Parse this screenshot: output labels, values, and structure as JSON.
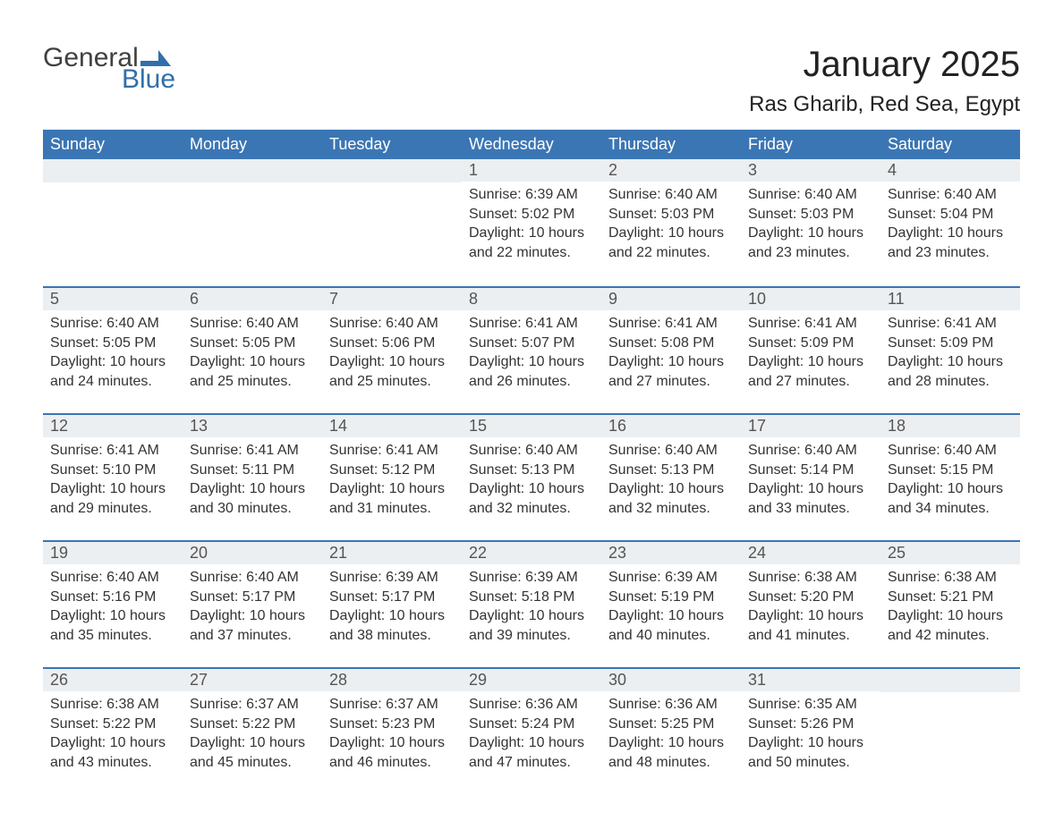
{
  "logo": {
    "general": "General",
    "blue": "Blue"
  },
  "title": "January 2025",
  "location": "Ras Gharib, Red Sea, Egypt",
  "colors": {
    "header_bg": "#3b76b4",
    "header_text": "#ffffff",
    "daynum_bg": "#eceff1",
    "daynum_border": "#3b76b4",
    "body_text": "#333333",
    "title_text": "#222222",
    "logo_gray": "#404040",
    "logo_blue": "#2f6fab",
    "page_bg": "#ffffff"
  },
  "fonts": {
    "family": "Arial, Helvetica, sans-serif",
    "title_size_pt": 30,
    "location_size_pt": 18,
    "header_size_pt": 13,
    "daynum_size_pt": 13,
    "body_size_pt": 12
  },
  "layout": {
    "columns": 7,
    "rows": 5,
    "first_weekday_index": 3,
    "days_in_month": 31
  },
  "weekdays": [
    "Sunday",
    "Monday",
    "Tuesday",
    "Wednesday",
    "Thursday",
    "Friday",
    "Saturday"
  ],
  "days": [
    {
      "n": 1,
      "sunrise": "6:39 AM",
      "sunset": "5:02 PM",
      "daylight": "10 hours and 22 minutes."
    },
    {
      "n": 2,
      "sunrise": "6:40 AM",
      "sunset": "5:03 PM",
      "daylight": "10 hours and 22 minutes."
    },
    {
      "n": 3,
      "sunrise": "6:40 AM",
      "sunset": "5:03 PM",
      "daylight": "10 hours and 23 minutes."
    },
    {
      "n": 4,
      "sunrise": "6:40 AM",
      "sunset": "5:04 PM",
      "daylight": "10 hours and 23 minutes."
    },
    {
      "n": 5,
      "sunrise": "6:40 AM",
      "sunset": "5:05 PM",
      "daylight": "10 hours and 24 minutes."
    },
    {
      "n": 6,
      "sunrise": "6:40 AM",
      "sunset": "5:05 PM",
      "daylight": "10 hours and 25 minutes."
    },
    {
      "n": 7,
      "sunrise": "6:40 AM",
      "sunset": "5:06 PM",
      "daylight": "10 hours and 25 minutes."
    },
    {
      "n": 8,
      "sunrise": "6:41 AM",
      "sunset": "5:07 PM",
      "daylight": "10 hours and 26 minutes."
    },
    {
      "n": 9,
      "sunrise": "6:41 AM",
      "sunset": "5:08 PM",
      "daylight": "10 hours and 27 minutes."
    },
    {
      "n": 10,
      "sunrise": "6:41 AM",
      "sunset": "5:09 PM",
      "daylight": "10 hours and 27 minutes."
    },
    {
      "n": 11,
      "sunrise": "6:41 AM",
      "sunset": "5:09 PM",
      "daylight": "10 hours and 28 minutes."
    },
    {
      "n": 12,
      "sunrise": "6:41 AM",
      "sunset": "5:10 PM",
      "daylight": "10 hours and 29 minutes."
    },
    {
      "n": 13,
      "sunrise": "6:41 AM",
      "sunset": "5:11 PM",
      "daylight": "10 hours and 30 minutes."
    },
    {
      "n": 14,
      "sunrise": "6:41 AM",
      "sunset": "5:12 PM",
      "daylight": "10 hours and 31 minutes."
    },
    {
      "n": 15,
      "sunrise": "6:40 AM",
      "sunset": "5:13 PM",
      "daylight": "10 hours and 32 minutes."
    },
    {
      "n": 16,
      "sunrise": "6:40 AM",
      "sunset": "5:13 PM",
      "daylight": "10 hours and 32 minutes."
    },
    {
      "n": 17,
      "sunrise": "6:40 AM",
      "sunset": "5:14 PM",
      "daylight": "10 hours and 33 minutes."
    },
    {
      "n": 18,
      "sunrise": "6:40 AM",
      "sunset": "5:15 PM",
      "daylight": "10 hours and 34 minutes."
    },
    {
      "n": 19,
      "sunrise": "6:40 AM",
      "sunset": "5:16 PM",
      "daylight": "10 hours and 35 minutes."
    },
    {
      "n": 20,
      "sunrise": "6:40 AM",
      "sunset": "5:17 PM",
      "daylight": "10 hours and 37 minutes."
    },
    {
      "n": 21,
      "sunrise": "6:39 AM",
      "sunset": "5:17 PM",
      "daylight": "10 hours and 38 minutes."
    },
    {
      "n": 22,
      "sunrise": "6:39 AM",
      "sunset": "5:18 PM",
      "daylight": "10 hours and 39 minutes."
    },
    {
      "n": 23,
      "sunrise": "6:39 AM",
      "sunset": "5:19 PM",
      "daylight": "10 hours and 40 minutes."
    },
    {
      "n": 24,
      "sunrise": "6:38 AM",
      "sunset": "5:20 PM",
      "daylight": "10 hours and 41 minutes."
    },
    {
      "n": 25,
      "sunrise": "6:38 AM",
      "sunset": "5:21 PM",
      "daylight": "10 hours and 42 minutes."
    },
    {
      "n": 26,
      "sunrise": "6:38 AM",
      "sunset": "5:22 PM",
      "daylight": "10 hours and 43 minutes."
    },
    {
      "n": 27,
      "sunrise": "6:37 AM",
      "sunset": "5:22 PM",
      "daylight": "10 hours and 45 minutes."
    },
    {
      "n": 28,
      "sunrise": "6:37 AM",
      "sunset": "5:23 PM",
      "daylight": "10 hours and 46 minutes."
    },
    {
      "n": 29,
      "sunrise": "6:36 AM",
      "sunset": "5:24 PM",
      "daylight": "10 hours and 47 minutes."
    },
    {
      "n": 30,
      "sunrise": "6:36 AM",
      "sunset": "5:25 PM",
      "daylight": "10 hours and 48 minutes."
    },
    {
      "n": 31,
      "sunrise": "6:35 AM",
      "sunset": "5:26 PM",
      "daylight": "10 hours and 50 minutes."
    }
  ],
  "labels": {
    "sunrise": "Sunrise: ",
    "sunset": "Sunset: ",
    "daylight": "Daylight: "
  }
}
